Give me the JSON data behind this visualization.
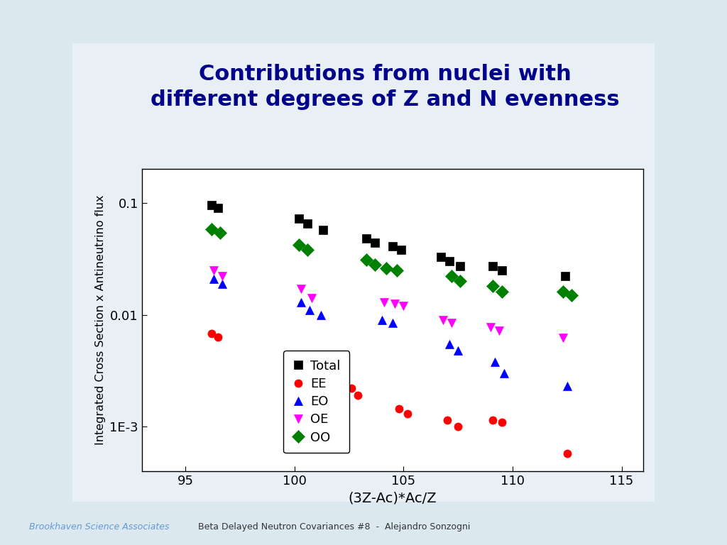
{
  "title": "Contributions from nuclei with\ndifferent degrees of Z and N evenness",
  "xlabel": "(3Z-Ac)*Ac/Z",
  "ylabel": "Integrated Cross Section x Antineutrino flux",
  "xlim": [
    93,
    116
  ],
  "ylim_log": [
    0.0004,
    0.2
  ],
  "xticks": [
    95,
    100,
    105,
    110,
    115
  ],
  "yticks_log": [
    0.001,
    0.01,
    0.1
  ],
  "ytick_labels": [
    "1E-3",
    "0.01",
    "0.1"
  ],
  "title_color": "#00008B",
  "series": {
    "Total": {
      "color": "black",
      "marker": "s",
      "markersize": 9,
      "x": [
        96.2,
        96.5,
        100.2,
        100.6,
        101.3,
        103.3,
        103.7,
        104.5,
        104.9,
        106.7,
        107.1,
        107.6,
        109.1,
        109.5,
        112.4
      ],
      "y": [
        0.095,
        0.09,
        0.072,
        0.065,
        0.057,
        0.048,
        0.044,
        0.041,
        0.038,
        0.033,
        0.03,
        0.027,
        0.027,
        0.025,
        0.022
      ]
    },
    "EE": {
      "color": "red",
      "marker": "o",
      "markersize": 8,
      "x": [
        96.2,
        96.5,
        100.3,
        100.6,
        102.6,
        102.9,
        104.8,
        105.2,
        107.0,
        107.5,
        109.1,
        109.5,
        112.5
      ],
      "y": [
        0.0068,
        0.0063,
        0.0038,
        0.0034,
        0.0022,
        0.0019,
        0.00145,
        0.0013,
        0.00115,
        0.001,
        0.00115,
        0.0011,
        0.00058
      ]
    },
    "EO": {
      "color": "blue",
      "marker": "^",
      "markersize": 9,
      "x": [
        96.3,
        96.7,
        100.3,
        100.7,
        101.2,
        104.0,
        104.5,
        107.1,
        107.5,
        109.2,
        109.6,
        112.5
      ],
      "y": [
        0.021,
        0.019,
        0.013,
        0.011,
        0.01,
        0.009,
        0.0085,
        0.0055,
        0.0048,
        0.0038,
        0.003,
        0.0023
      ]
    },
    "OE": {
      "color": "magenta",
      "marker": "v",
      "markersize": 9,
      "x": [
        96.3,
        96.7,
        100.3,
        100.8,
        104.1,
        104.6,
        105.0,
        106.8,
        107.2,
        109.0,
        109.4,
        112.3
      ],
      "y": [
        0.025,
        0.022,
        0.017,
        0.014,
        0.013,
        0.0125,
        0.012,
        0.009,
        0.0085,
        0.0078,
        0.0072,
        0.0062
      ]
    },
    "OO": {
      "color": "green",
      "marker": "D",
      "markersize": 9,
      "x": [
        96.2,
        96.6,
        100.2,
        100.6,
        103.3,
        103.7,
        104.2,
        104.7,
        107.2,
        107.6,
        109.1,
        109.5,
        112.3,
        112.7
      ],
      "y": [
        0.058,
        0.054,
        0.042,
        0.038,
        0.031,
        0.028,
        0.026,
        0.025,
        0.022,
        0.02,
        0.018,
        0.016,
        0.016,
        0.015
      ]
    }
  },
  "footer_left": "Brookhaven Science Associates",
  "footer_center": "Beta Delayed Neutron Covariances #8  -  Alejandro Sonzogni"
}
